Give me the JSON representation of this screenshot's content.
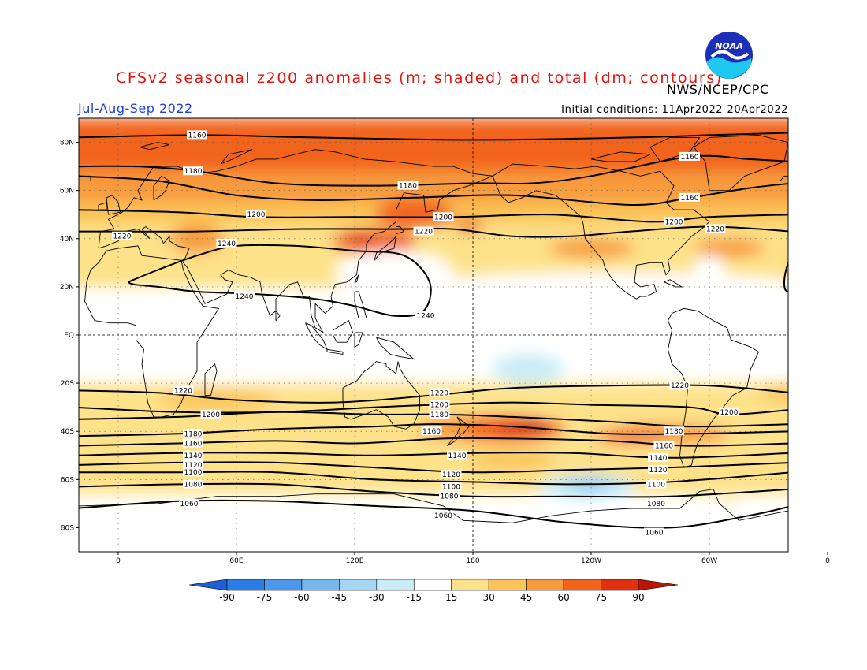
{
  "title": "CFSv2 seasonal z200 anomalies (m; shaded) and total (dm; contours)",
  "agency": "NWS/NCEP/CPC",
  "period": "Jul-Aug-Sep 2022",
  "initial_conditions": "Initial conditions: 11Apr2022-20Apr2022",
  "logo_text": "NOAA",
  "colors": {
    "neg90": "#1c5fd8",
    "neg75": "#2b7de6",
    "neg60": "#4c98ea",
    "neg45": "#78b7ef",
    "neg30": "#a3d6f3",
    "neg15": "#c8edf6",
    "neutral": "#ffffff",
    "pos15": "#fde28a",
    "pos30": "#fcc458",
    "pos45": "#f79b3e",
    "pos60": "#f2631b",
    "pos75": "#e2300e",
    "pos90": "#be1408"
  },
  "map": {
    "lat_labels": [
      "80N",
      "60N",
      "40N",
      "20N",
      "EQ",
      "20S",
      "40S",
      "60S",
      "80S"
    ],
    "lon_labels": [
      "0",
      "60E",
      "120E",
      "180",
      "120W",
      "60W",
      "0"
    ]
  },
  "contour_labels": [
    {
      "text": "1160",
      "lon": 40,
      "lat": 83
    },
    {
      "text": "1180",
      "lon": 38,
      "lat": 68
    },
    {
      "text": "1180",
      "lon": 147,
      "lat": 62
    },
    {
      "text": "1160",
      "lon": 290,
      "lat": 74
    },
    {
      "text": "1160",
      "lon": 290,
      "lat": 57
    },
    {
      "text": "1200",
      "lon": 70,
      "lat": 50
    },
    {
      "text": "1200",
      "lon": 165,
      "lat": 49
    },
    {
      "text": "1200",
      "lon": 282,
      "lat": 47
    },
    {
      "text": "1220",
      "lon": 155,
      "lat": 43
    },
    {
      "text": "1220",
      "lon": 303,
      "lat": 44
    },
    {
      "text": "1220",
      "lon": 2,
      "lat": 41
    },
    {
      "text": "1240",
      "lon": 55,
      "lat": 38
    },
    {
      "text": "1240",
      "lon": 64,
      "lat": 16
    },
    {
      "text": "1240",
      "lon": 156,
      "lat": 8
    },
    {
      "text": "1220",
      "lon": 163,
      "lat": -24
    },
    {
      "text": "1220",
      "lon": 285,
      "lat": -21
    },
    {
      "text": "1220",
      "lon": 33,
      "lat": -23
    },
    {
      "text": "1200",
      "lon": 163,
      "lat": -29
    },
    {
      "text": "1200",
      "lon": 310,
      "lat": -32
    },
    {
      "text": "1200",
      "lon": 47,
      "lat": -33
    },
    {
      "text": "1180",
      "lon": 163,
      "lat": -33
    },
    {
      "text": "1180",
      "lon": 282,
      "lat": -40
    },
    {
      "text": "1180",
      "lon": 38,
      "lat": -41
    },
    {
      "text": "1160",
      "lon": 159,
      "lat": -40
    },
    {
      "text": "1160",
      "lon": 277,
      "lat": -46
    },
    {
      "text": "1160",
      "lon": 38,
      "lat": -45
    },
    {
      "text": "1140",
      "lon": 38,
      "lat": -50
    },
    {
      "text": "1140",
      "lon": 172,
      "lat": -50
    },
    {
      "text": "1140",
      "lon": 274,
      "lat": -51
    },
    {
      "text": "1120",
      "lon": 38,
      "lat": -54
    },
    {
      "text": "1120",
      "lon": 169,
      "lat": -58
    },
    {
      "text": "1120",
      "lon": 274,
      "lat": -56
    },
    {
      "text": "1100",
      "lon": 38,
      "lat": -57
    },
    {
      "text": "1100",
      "lon": 169,
      "lat": -63
    },
    {
      "text": "1100",
      "lon": 273,
      "lat": -62
    },
    {
      "text": "1080",
      "lon": 38,
      "lat": -62
    },
    {
      "text": "1080",
      "lon": 168,
      "lat": -67
    },
    {
      "text": "1080",
      "lon": 273,
      "lat": -70
    },
    {
      "text": "1060",
      "lon": 36,
      "lat": -70
    },
    {
      "text": "1060",
      "lon": 165,
      "lat": -75
    },
    {
      "text": "1060",
      "lon": 272,
      "lat": -82
    }
  ],
  "legend": {
    "labels": [
      "-90",
      "-75",
      "-60",
      "-45",
      "-30",
      "-15",
      "15",
      "30",
      "45",
      "60",
      "75",
      "90"
    ]
  }
}
